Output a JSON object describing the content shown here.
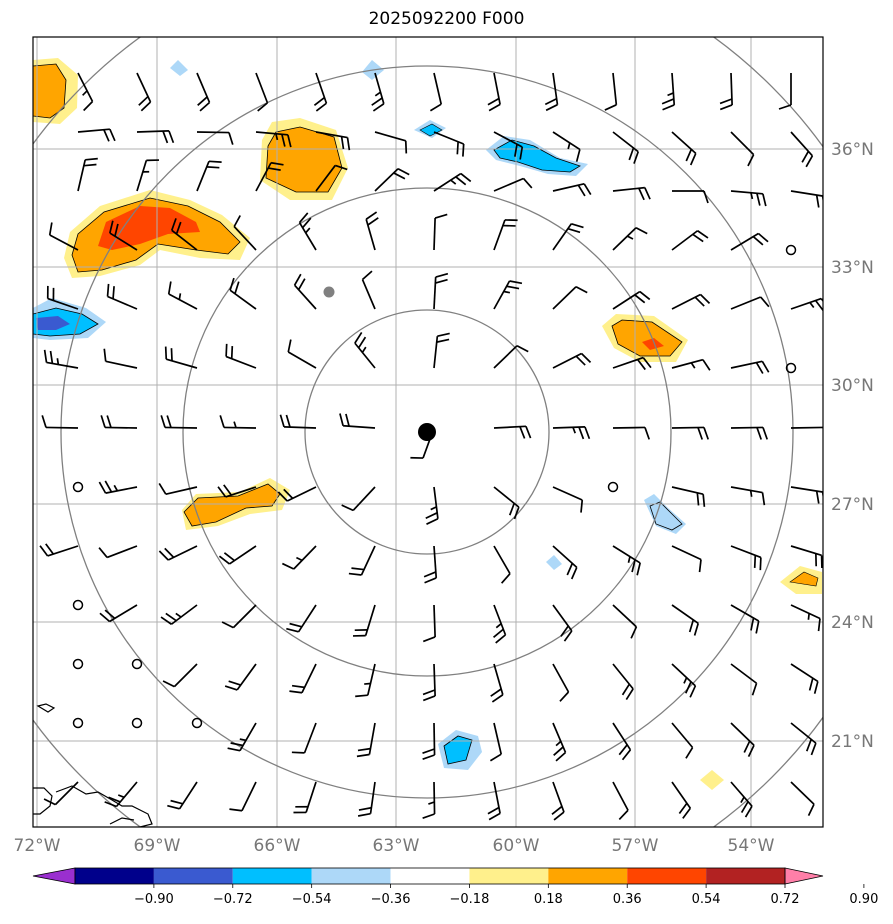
{
  "title": "2025092200 F000",
  "colors": {
    "grid": "#b0b0b0",
    "ring": "#808080",
    "barb": "#000000",
    "coast": "#000000",
    "axis_label": "#777777",
    "positive": [
      "#ffffff",
      "#fff08c",
      "#ffa500",
      "#ff4500",
      "#b22222",
      "#ff7fa8"
    ],
    "negative": [
      "#9a2fcf",
      "#00008b",
      "#3a5ad0",
      "#00bfff",
      "#add8f8",
      "#ffffff"
    ]
  },
  "map": {
    "lon_labels": [
      "72°W",
      "69°W",
      "66°W",
      "63°W",
      "60°W",
      "57°W",
      "54°W"
    ],
    "lat_labels": [
      "36°N",
      "33°N",
      "30°N",
      "27°N",
      "24°N",
      "21°N"
    ],
    "center_marker": "storm-center",
    "secondary_marker": "gray-dot",
    "range_rings": 4
  },
  "colorbar": {
    "ticks": [
      "−0.90",
      "−0.72",
      "−0.54",
      "−0.36",
      "−0.18",
      "0.18",
      "0.36",
      "0.54",
      "0.72",
      "0.90"
    ],
    "bins": [
      "#9a2fcf",
      "#00008b",
      "#3a5ad0",
      "#00bfff",
      "#add8f8",
      "#ffffff",
      "#fff08c",
      "#ffa500",
      "#ff4500",
      "#b22222",
      "#ff7fa8"
    ],
    "extend": "both"
  }
}
